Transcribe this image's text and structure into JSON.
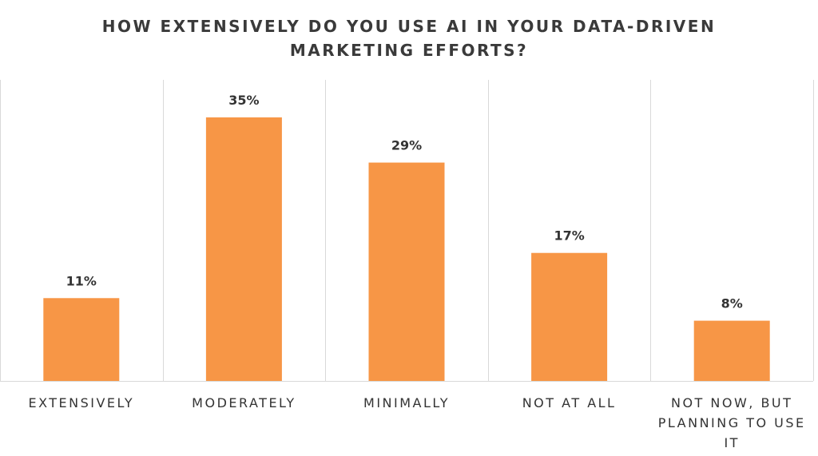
{
  "chart_data": {
    "type": "bar",
    "title_lines": [
      "HOW EXTENSIVELY DO YOU USE AI IN YOUR DATA-DRIVEN",
      "MARKETING EFFORTS?"
    ],
    "categories": [
      [
        "EXTENSIVELY"
      ],
      [
        "MODERATELY"
      ],
      [
        "MINIMALLY"
      ],
      [
        "NOT AT ALL"
      ],
      [
        "NOT NOW, BUT",
        "PLANNING TO USE",
        "IT"
      ]
    ],
    "values": [
      11,
      35,
      29,
      17,
      8
    ],
    "value_labels": [
      "11%",
      "35%",
      "29%",
      "17%",
      "8%"
    ],
    "unit": "%",
    "ylim": [
      0,
      40
    ],
    "bar_color": "#f79646",
    "grid": "vertical separators",
    "legend": "none"
  }
}
